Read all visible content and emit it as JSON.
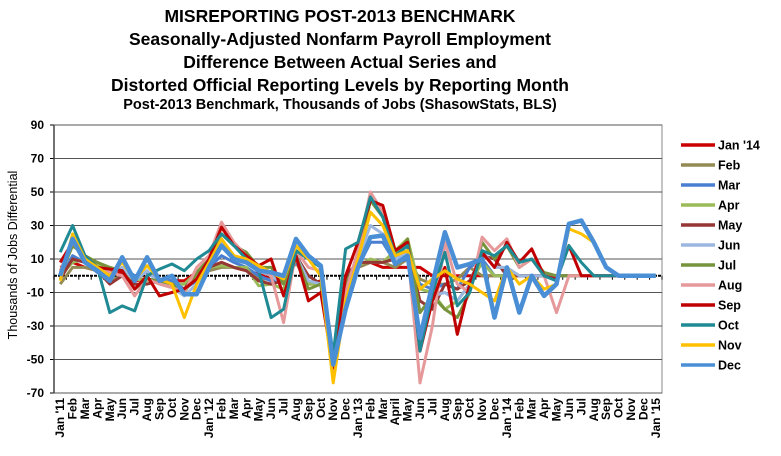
{
  "chart_data": {
    "type": "line",
    "title": "MISREPORTING POST-2013 BENCHMARK",
    "subtitle_lines": [
      "Seasonally-Adjusted Nonfarm Payroll Employment",
      "Difference Between Actual Series and",
      "Distorted Official Reporting Levels by Reporting Month"
    ],
    "note": "Post-2013 Benchmark, Thousands of Jobs (ShasowStats, BLS)",
    "ylabel": "Thousands of Jobs Differential",
    "xlabel": "",
    "ylim": [
      -70,
      90
    ],
    "yticks": [
      90,
      70,
      50,
      30,
      10,
      -10,
      -30,
      -50,
      -70
    ],
    "grid": true,
    "legend_position": "right",
    "x": [
      "Jan '11",
      "Feb",
      "Mar",
      "Apr",
      "May",
      "Jun",
      "Jul",
      "Aug",
      "Sep",
      "Oct",
      "Nov",
      "Dec",
      "Jan '12",
      "Feb",
      "Mar",
      "Apr",
      "May",
      "Jun",
      "Jul",
      "Aug",
      "Sep",
      "Oct",
      "Nov",
      "Dec",
      "Jan '13",
      "Feb",
      "Mar",
      "April",
      "May",
      "Jun",
      "Jul",
      "Aug",
      "Sep",
      "Oct",
      "Nov",
      "Dec",
      "Jan '14",
      "Feb",
      "Mar",
      "Apr",
      "May",
      "Jun",
      "Jul",
      "Aug",
      "Sep",
      "Oct",
      "Nov",
      "Dec",
      "Jan '15"
    ],
    "series": [
      {
        "name": "Jan '14",
        "color": "#cc0000",
        "values": [
          5,
          8,
          5,
          3,
          2,
          2,
          -3,
          -2,
          -3,
          -3,
          -3,
          2,
          5,
          8,
          5,
          3,
          1,
          -2,
          -3,
          8,
          -5,
          -3,
          -50,
          -3,
          5,
          8,
          5,
          5,
          5,
          5,
          0,
          0,
          0,
          0,
          0,
          0,
          0,
          0,
          0,
          0,
          0,
          0,
          0,
          0,
          0,
          0,
          0,
          0,
          0
        ]
      },
      {
        "name": "Feb",
        "color": "#948a54",
        "values": [
          -5,
          5,
          5,
          3,
          -3,
          0,
          -2,
          -2,
          -3,
          -5,
          -5,
          0,
          3,
          5,
          5,
          3,
          -2,
          -2,
          -3,
          8,
          -5,
          -5,
          -55,
          -5,
          5,
          8,
          8,
          5,
          10,
          -2,
          -5,
          -5,
          -2,
          5,
          0,
          0,
          0,
          0,
          0,
          0,
          0,
          0,
          0,
          0,
          0,
          0,
          0,
          0,
          0
        ]
      },
      {
        "name": "Mar",
        "color": "#4a7ed0",
        "values": [
          -2,
          12,
          8,
          2,
          0,
          5,
          0,
          2,
          -2,
          -3,
          -8,
          -3,
          5,
          12,
          8,
          5,
          0,
          -3,
          -3,
          8,
          0,
          -5,
          -55,
          -5,
          5,
          20,
          20,
          8,
          10,
          -5,
          -8,
          -5,
          -8,
          5,
          10,
          0,
          0,
          0,
          0,
          0,
          0,
          0,
          0,
          0,
          0,
          0,
          0,
          0,
          0
        ]
      },
      {
        "name": "Apr",
        "color": "#9bbb59",
        "values": [
          0,
          8,
          10,
          6,
          5,
          3,
          -2,
          -3,
          -2,
          -5,
          -5,
          2,
          5,
          6,
          5,
          5,
          -6,
          -5,
          -8,
          10,
          -5,
          -5,
          -55,
          -5,
          6,
          10,
          8,
          15,
          22,
          -8,
          -10,
          -20,
          -15,
          -5,
          8,
          0,
          0,
          0,
          0,
          0,
          0,
          0,
          0,
          0,
          0,
          0,
          0,
          0,
          0
        ]
      },
      {
        "name": "May",
        "color": "#953735",
        "values": [
          -2,
          10,
          8,
          3,
          -5,
          0,
          -5,
          -5,
          -3,
          -5,
          -8,
          2,
          5,
          8,
          5,
          3,
          -3,
          -5,
          -3,
          12,
          0,
          -5,
          -55,
          0,
          8,
          8,
          8,
          10,
          15,
          -15,
          -20,
          -5,
          -8,
          -3,
          12,
          10,
          0,
          0,
          0,
          0,
          0,
          0,
          0,
          0,
          0,
          0,
          0,
          0,
          0
        ]
      },
      {
        "name": "Jun",
        "color": "#9bb7e0",
        "values": [
          2,
          20,
          10,
          5,
          0,
          5,
          -3,
          3,
          -5,
          -7,
          -12,
          -5,
          8,
          20,
          12,
          8,
          3,
          0,
          -5,
          12,
          -3,
          -5,
          -55,
          -8,
          10,
          30,
          25,
          10,
          14,
          -40,
          -12,
          -10,
          -15,
          -5,
          15,
          5,
          5,
          0,
          0,
          0,
          0,
          0,
          0,
          0,
          0,
          0,
          0,
          0,
          0
        ]
      },
      {
        "name": "Jul",
        "color": "#77933c",
        "values": [
          0,
          18,
          12,
          8,
          5,
          3,
          -8,
          -2,
          -3,
          -5,
          -10,
          2,
          10,
          25,
          18,
          14,
          5,
          5,
          -5,
          12,
          -8,
          -5,
          -55,
          -5,
          10,
          45,
          35,
          12,
          22,
          -22,
          -12,
          -20,
          -25,
          -10,
          20,
          10,
          18,
          5,
          10,
          2,
          0,
          0,
          0,
          0,
          0,
          0,
          0,
          0,
          0
        ]
      },
      {
        "name": "Aug",
        "color": "#e6999a",
        "values": [
          3,
          20,
          10,
          5,
          2,
          0,
          -12,
          -2,
          -5,
          -7,
          -10,
          5,
          12,
          32,
          20,
          12,
          5,
          0,
          -28,
          15,
          5,
          3,
          -60,
          -10,
          15,
          50,
          38,
          12,
          15,
          -64,
          -30,
          20,
          -5,
          -10,
          23,
          15,
          22,
          5,
          10,
          0,
          -22,
          0,
          0,
          0,
          0,
          0,
          0,
          0,
          0
        ]
      },
      {
        "name": "Sep",
        "color": "#c00000",
        "values": [
          8,
          20,
          12,
          5,
          4,
          3,
          -8,
          0,
          -12,
          -10,
          -8,
          -2,
          10,
          29,
          18,
          12,
          6,
          10,
          -12,
          12,
          -15,
          -10,
          -55,
          0,
          20,
          45,
          42,
          15,
          20,
          -45,
          -15,
          5,
          -35,
          -5,
          14,
          5,
          20,
          8,
          16,
          0,
          -2,
          18,
          0,
          0,
          0,
          0,
          0,
          0,
          0
        ]
      },
      {
        "name": "Oct",
        "color": "#1f8a94",
        "values": [
          14,
          30,
          12,
          5,
          -22,
          -18,
          -21,
          0,
          4,
          7,
          3,
          10,
          15,
          25,
          18,
          10,
          3,
          -25,
          -20,
          15,
          10,
          5,
          -47,
          16,
          20,
          47,
          35,
          12,
          18,
          -45,
          -10,
          14,
          -18,
          -10,
          15,
          12,
          18,
          8,
          10,
          0,
          -3,
          18,
          8,
          0,
          0,
          0,
          0,
          0,
          0
        ]
      },
      {
        "name": "Nov",
        "color": "#ffc000",
        "values": [
          -3,
          25,
          10,
          5,
          0,
          8,
          -2,
          6,
          -2,
          -5,
          -25,
          -5,
          8,
          22,
          12,
          10,
          6,
          2,
          -2,
          18,
          10,
          0,
          -64,
          -15,
          10,
          38,
          30,
          12,
          15,
          -8,
          -2,
          3,
          -2,
          -5,
          -10,
          -15,
          5,
          -5,
          0,
          -8,
          -5,
          28,
          25,
          20,
          5,
          0,
          0,
          0,
          0
        ]
      },
      {
        "name": "Dec",
        "color": "#4a8fd6",
        "values": [
          0,
          22,
          8,
          3,
          -3,
          11,
          -3,
          11,
          -3,
          0,
          -11,
          -11,
          5,
          18,
          10,
          8,
          3,
          2,
          0,
          22,
          12,
          6,
          -53,
          -20,
          5,
          23,
          24,
          7,
          12,
          -37,
          -5,
          26,
          5,
          7,
          10,
          -25,
          5,
          -22,
          0,
          -12,
          -5,
          31,
          33,
          20,
          5,
          0,
          0,
          0,
          0
        ]
      }
    ]
  }
}
